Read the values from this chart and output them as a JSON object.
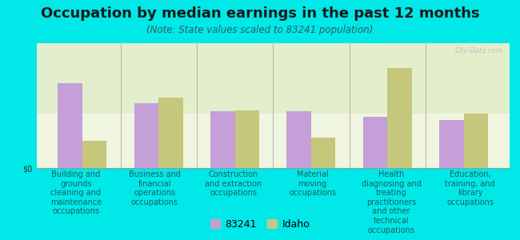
{
  "title": "Occupation by median earnings in the past 12 months",
  "subtitle": "(Note: State values scaled to 83241 population)",
  "categories": [
    "Building and\ngrounds\ncleaning and\nmaintenance\noccupations",
    "Business and\nfinancial\noperations\noccupations",
    "Construction\nand extraction\noccupations",
    "Material\nmoving\noccupations",
    "Health\ndiagnosing and\ntreating\npractitioners\nand other\ntechnical\noccupations",
    "Education,\ntraining, and\nlibrary\noccupations"
  ],
  "values_83241": [
    0.78,
    0.6,
    0.52,
    0.52,
    0.47,
    0.44
  ],
  "values_idaho": [
    0.25,
    0.65,
    0.53,
    0.28,
    0.92,
    0.5
  ],
  "color_83241": "#c49fd8",
  "color_idaho": "#c5c87a",
  "background_outer": "#00e8e8",
  "ylabel": "$0",
  "legend_label_83241": "83241",
  "legend_label_idaho": "Idaho",
  "bar_width": 0.32,
  "title_fontsize": 13,
  "subtitle_fontsize": 8.5,
  "tick_fontsize": 7.0,
  "legend_fontsize": 9,
  "watermark": "City-Data.com"
}
